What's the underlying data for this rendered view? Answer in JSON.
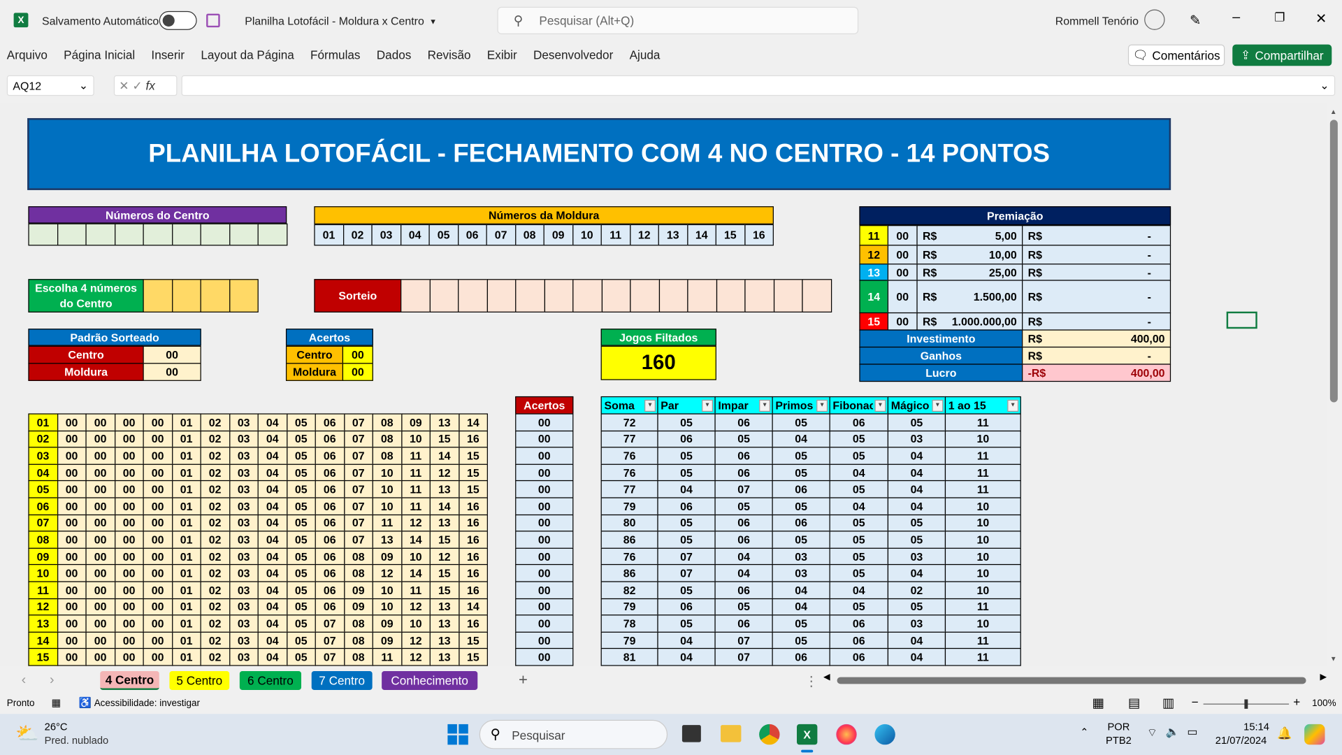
{
  "titlebar": {
    "autosave": "Salvamento Automático",
    "doc_title": "Planilha Lotofácil - Moldura x Centro",
    "search_placeholder": "Pesquisar (Alt+Q)",
    "user": "Rommell Tenório"
  },
  "menu": [
    "Arquivo",
    "Página Inicial",
    "Inserir",
    "Layout da Página",
    "Fórmulas",
    "Dados",
    "Revisão",
    "Exibir",
    "Desenvolvedor",
    "Ajuda"
  ],
  "buttons": {
    "comments": "Comentários",
    "share": "Compartilhar"
  },
  "formula_bar": {
    "name_box": "AQ12",
    "fx": "fx",
    "value": ""
  },
  "sheet": {
    "banner": "PLANILHA LOTOFÁCIL - FECHAMENTO COM 4 NO CENTRO - 14 PONTOS",
    "centro_header": "Números do Centro",
    "moldura_header": "Números da Moldura",
    "moldura_numbers": [
      "01",
      "02",
      "03",
      "04",
      "05",
      "06",
      "07",
      "08",
      "09",
      "10",
      "11",
      "12",
      "13",
      "14",
      "15",
      "16"
    ],
    "escolha_label": "Escolha 4 números do Centro",
    "sorteio_label": "Sorteio",
    "padrao": {
      "header": "Padrão Sorteado",
      "rows": [
        [
          "Centro",
          "00"
        ],
        [
          "Moldura",
          "00"
        ]
      ]
    },
    "acertos_box": {
      "header": "Acertos",
      "rows": [
        [
          "Centro",
          "00"
        ],
        [
          "Moldura",
          "00"
        ]
      ]
    },
    "jogos": {
      "header": "Jogos Filtados",
      "value": "160"
    },
    "premiacao": {
      "header": "Premiação",
      "rows": [
        {
          "pts": "11",
          "color": "#ffff00",
          "fg": "#000",
          "hits": "00",
          "cur": "R$",
          "prize": "5,00",
          "cur2": "R$",
          "total": "-"
        },
        {
          "pts": "12",
          "color": "#ffc000",
          "fg": "#000",
          "hits": "00",
          "cur": "R$",
          "prize": "10,00",
          "cur2": "R$",
          "total": "-"
        },
        {
          "pts": "13",
          "color": "#00b0f0",
          "fg": "#fff",
          "hits": "00",
          "cur": "R$",
          "prize": "25,00",
          "cur2": "R$",
          "total": "-"
        },
        {
          "pts": "14",
          "color": "#00b050",
          "fg": "#fff",
          "hits": "00",
          "cur": "R$",
          "prize": "1.500,00",
          "cur2": "R$",
          "total": "-"
        },
        {
          "pts": "15",
          "color": "#ff0000",
          "fg": "#fff",
          "hits": "00",
          "cur": "R$",
          "prize": "1.000.000,00",
          "cur2": "R$",
          "total": "-"
        }
      ],
      "summary": [
        {
          "label": "Investimento",
          "cur": "R$",
          "value": "400,00"
        },
        {
          "label": "Ganhos",
          "cur": "R$",
          "value": "-"
        },
        {
          "label": "Lucro",
          "cur": "-R$",
          "value": "400,00"
        }
      ]
    },
    "games": [
      [
        "01",
        "00",
        "00",
        "00",
        "00",
        "01",
        "02",
        "03",
        "04",
        "05",
        "06",
        "07",
        "08",
        "09",
        "13",
        "14"
      ],
      [
        "02",
        "00",
        "00",
        "00",
        "00",
        "01",
        "02",
        "03",
        "04",
        "05",
        "06",
        "07",
        "08",
        "10",
        "15",
        "16"
      ],
      [
        "03",
        "00",
        "00",
        "00",
        "00",
        "01",
        "02",
        "03",
        "04",
        "05",
        "06",
        "07",
        "08",
        "11",
        "14",
        "15"
      ],
      [
        "04",
        "00",
        "00",
        "00",
        "00",
        "01",
        "02",
        "03",
        "04",
        "05",
        "06",
        "07",
        "10",
        "11",
        "12",
        "15"
      ],
      [
        "05",
        "00",
        "00",
        "00",
        "00",
        "01",
        "02",
        "03",
        "04",
        "05",
        "06",
        "07",
        "10",
        "11",
        "13",
        "15"
      ],
      [
        "06",
        "00",
        "00",
        "00",
        "00",
        "01",
        "02",
        "03",
        "04",
        "05",
        "06",
        "07",
        "10",
        "11",
        "14",
        "16"
      ],
      [
        "07",
        "00",
        "00",
        "00",
        "00",
        "01",
        "02",
        "03",
        "04",
        "05",
        "06",
        "07",
        "11",
        "12",
        "13",
        "16"
      ],
      [
        "08",
        "00",
        "00",
        "00",
        "00",
        "01",
        "02",
        "03",
        "04",
        "05",
        "06",
        "07",
        "13",
        "14",
        "15",
        "16"
      ],
      [
        "09",
        "00",
        "00",
        "00",
        "00",
        "01",
        "02",
        "03",
        "04",
        "05",
        "06",
        "08",
        "09",
        "10",
        "12",
        "16"
      ],
      [
        "10",
        "00",
        "00",
        "00",
        "00",
        "01",
        "02",
        "03",
        "04",
        "05",
        "06",
        "08",
        "12",
        "14",
        "15",
        "16"
      ],
      [
        "11",
        "00",
        "00",
        "00",
        "00",
        "01",
        "02",
        "03",
        "04",
        "05",
        "06",
        "09",
        "10",
        "11",
        "15",
        "16"
      ],
      [
        "12",
        "00",
        "00",
        "00",
        "00",
        "01",
        "02",
        "03",
        "04",
        "05",
        "06",
        "09",
        "10",
        "12",
        "13",
        "14"
      ],
      [
        "13",
        "00",
        "00",
        "00",
        "00",
        "01",
        "02",
        "03",
        "04",
        "05",
        "07",
        "08",
        "09",
        "10",
        "13",
        "16"
      ],
      [
        "14",
        "00",
        "00",
        "00",
        "00",
        "01",
        "02",
        "03",
        "04",
        "05",
        "07",
        "08",
        "09",
        "12",
        "13",
        "15"
      ],
      [
        "15",
        "00",
        "00",
        "00",
        "00",
        "01",
        "02",
        "03",
        "04",
        "05",
        "07",
        "08",
        "11",
        "12",
        "13",
        "15"
      ]
    ],
    "acertos_col": {
      "header": "Acertos",
      "values": [
        "00",
        "00",
        "00",
        "00",
        "00",
        "00",
        "00",
        "00",
        "00",
        "00",
        "00",
        "00",
        "00",
        "00",
        "00"
      ]
    },
    "stats": {
      "headers": [
        "Soma",
        "Par",
        "Impar",
        "Primos",
        "Fibonac",
        "Mágico",
        "1 ao 15"
      ],
      "rows": [
        [
          "72",
          "05",
          "06",
          "05",
          "06",
          "05",
          "11"
        ],
        [
          "77",
          "06",
          "05",
          "04",
          "05",
          "03",
          "10"
        ],
        [
          "76",
          "05",
          "06",
          "05",
          "05",
          "04",
          "11"
        ],
        [
          "76",
          "05",
          "06",
          "05",
          "04",
          "04",
          "11"
        ],
        [
          "77",
          "04",
          "07",
          "06",
          "05",
          "04",
          "11"
        ],
        [
          "79",
          "06",
          "05",
          "05",
          "04",
          "04",
          "10"
        ],
        [
          "80",
          "05",
          "06",
          "06",
          "05",
          "05",
          "10"
        ],
        [
          "86",
          "05",
          "06",
          "05",
          "05",
          "05",
          "10"
        ],
        [
          "76",
          "07",
          "04",
          "03",
          "05",
          "03",
          "10"
        ],
        [
          "86",
          "07",
          "04",
          "03",
          "05",
          "04",
          "10"
        ],
        [
          "82",
          "05",
          "06",
          "04",
          "04",
          "02",
          "10"
        ],
        [
          "79",
          "06",
          "05",
          "04",
          "05",
          "05",
          "11"
        ],
        [
          "78",
          "05",
          "06",
          "05",
          "06",
          "03",
          "10"
        ],
        [
          "79",
          "04",
          "07",
          "05",
          "06",
          "04",
          "11"
        ],
        [
          "81",
          "04",
          "07",
          "06",
          "06",
          "04",
          "11"
        ]
      ]
    }
  },
  "tabs": [
    {
      "label": "4 Centro",
      "bg": "#f4b6b6",
      "fg": "#000"
    },
    {
      "label": "5 Centro",
      "bg": "#ffff00",
      "fg": "#000"
    },
    {
      "label": "6 Centro",
      "bg": "#00b050",
      "fg": "#000"
    },
    {
      "label": "7 Centro",
      "bg": "#0070c0",
      "fg": "#fff"
    },
    {
      "label": "Conhecimento",
      "bg": "#7030a0",
      "fg": "#fff"
    }
  ],
  "statusbar": {
    "ready": "Pronto",
    "accessibility": "Acessibilidade: investigar",
    "zoom": "100%"
  },
  "taskbar": {
    "temp": "26°C",
    "weather": "Pred. nublado",
    "search": "Pesquisar",
    "lang1": "POR",
    "lang2": "PTB2",
    "time": "15:14",
    "date": "21/07/2024"
  }
}
